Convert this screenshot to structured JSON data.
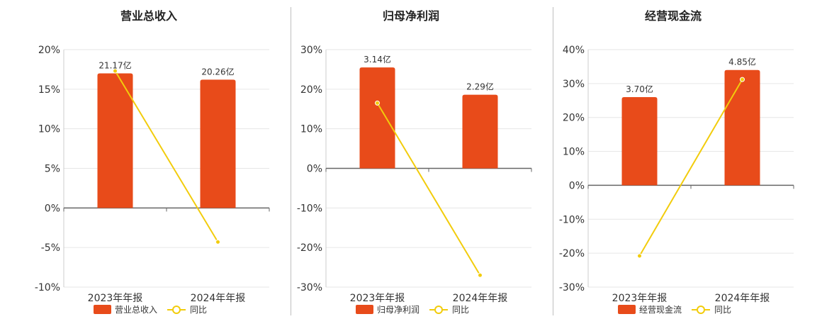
{
  "colors": {
    "bar": "#E84B1A",
    "line": "#F2CC0C",
    "grid": "#e6e6e6",
    "axis": "#666666"
  },
  "chart_data": [
    {
      "type": "bar",
      "title": "营业总收入",
      "categories": [
        "2023年年报",
        "2024年年报"
      ],
      "ylim": [
        -10,
        20
      ],
      "yticks": [
        -10,
        -5,
        0,
        5,
        10,
        15,
        20
      ],
      "tick_suffix": "%",
      "series": [
        {
          "name": "营业总收入",
          "kind": "bar",
          "values": [
            17.0,
            16.2
          ],
          "labels": [
            "21.17亿",
            "20.26亿"
          ]
        },
        {
          "name": "同比",
          "kind": "line",
          "values": [
            17.3,
            -4.3
          ]
        }
      ]
    },
    {
      "type": "bar",
      "title": "归母净利润",
      "categories": [
        "2023年年报",
        "2024年年报"
      ],
      "ylim": [
        -30,
        30
      ],
      "yticks": [
        -30,
        -20,
        -10,
        0,
        10,
        20,
        30
      ],
      "tick_suffix": "%",
      "series": [
        {
          "name": "归母净利润",
          "kind": "bar",
          "values": [
            25.5,
            18.6
          ],
          "labels": [
            "3.14亿",
            "2.29亿"
          ]
        },
        {
          "name": "同比",
          "kind": "line",
          "values": [
            16.5,
            -27.0
          ]
        }
      ]
    },
    {
      "type": "bar",
      "title": "经营现金流",
      "categories": [
        "2023年年报",
        "2024年年报"
      ],
      "ylim": [
        -30,
        40
      ],
      "yticks": [
        -30,
        -20,
        -10,
        0,
        10,
        20,
        30,
        40
      ],
      "tick_suffix": "%",
      "series": [
        {
          "name": "经营现金流",
          "kind": "bar",
          "values": [
            26.0,
            34.0
          ],
          "labels": [
            "3.70亿",
            "4.85亿"
          ]
        },
        {
          "name": "同比",
          "kind": "line",
          "values": [
            -20.8,
            31.2
          ]
        }
      ]
    }
  ]
}
